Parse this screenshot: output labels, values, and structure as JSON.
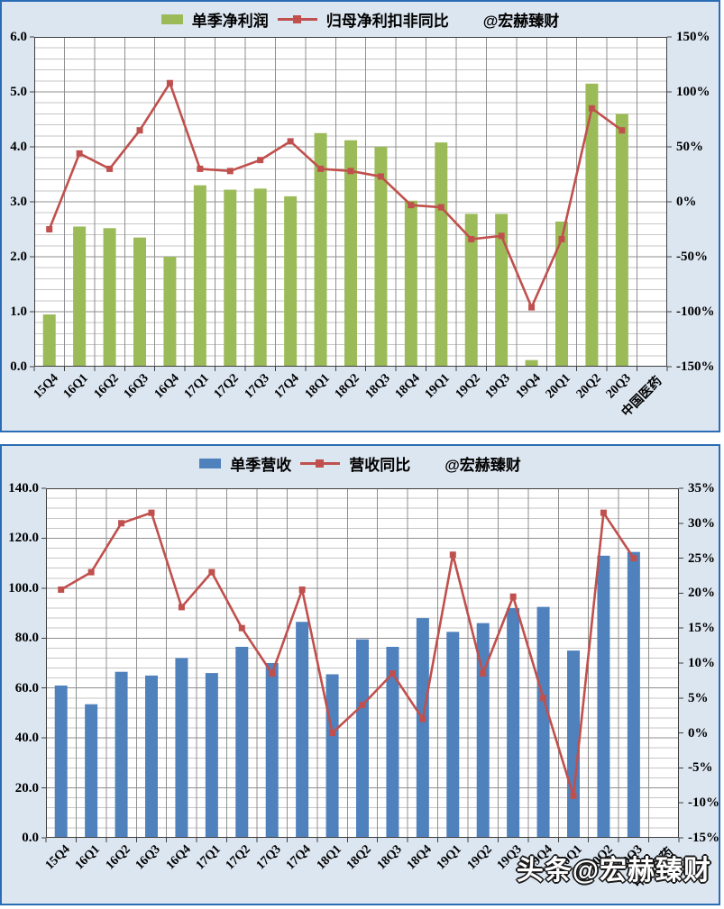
{
  "colors": {
    "panel_background": "#dce6f1",
    "panel_border": "#2a6db4",
    "plot_background": "#ffffff",
    "grid_minor": "#c6c6c6",
    "grid_major": "#8f8f8f",
    "axis_line": "#404040",
    "bar_green": "#9bbb59",
    "bar_blue": "#4f81bd",
    "line_red": "#c0504d",
    "text": "#000000"
  },
  "footer": {
    "watermark": "头条@宏赫臻财"
  },
  "chart_data": [
    {
      "id": "quarterly-net-profit",
      "type": "combo",
      "legend_position": "top",
      "grid": true,
      "legend": {
        "bar_label": "单季净利润",
        "line_label": "归母净利扣非同比",
        "watermark": "@宏赫臻财"
      },
      "categories": [
        "15Q4",
        "16Q1",
        "16Q2",
        "16Q3",
        "16Q4",
        "17Q1",
        "17Q2",
        "17Q3",
        "17Q4",
        "18Q1",
        "18Q2",
        "18Q3",
        "18Q4",
        "19Q1",
        "19Q2",
        "19Q3",
        "19Q4",
        "20Q1",
        "20Q2",
        "20Q3",
        "中国医药"
      ],
      "series": [
        {
          "name": "单季净利润",
          "type": "bar",
          "axis": "left",
          "color": "#9bbb59",
          "values": [
            0.95,
            2.55,
            2.52,
            2.35,
            2.0,
            3.3,
            3.22,
            3.24,
            3.1,
            4.25,
            4.12,
            4.0,
            3.02,
            4.08,
            2.78,
            2.78,
            0.12,
            2.64,
            5.15,
            4.6,
            null
          ]
        },
        {
          "name": "归母净利扣非同比",
          "type": "line",
          "axis": "right",
          "color": "#c0504d",
          "values": [
            -25,
            44,
            30,
            65,
            108,
            30,
            28,
            38,
            55,
            30,
            28,
            23,
            -3,
            -5,
            -34,
            -31,
            -96,
            -34,
            85,
            65,
            null
          ]
        }
      ],
      "left_axis": {
        "min": 0,
        "max": 6,
        "major": 1,
        "minor": 0.2,
        "labels": [
          "0.0",
          "1.0",
          "2.0",
          "3.0",
          "4.0",
          "5.0",
          "6.0"
        ]
      },
      "right_axis": {
        "min": -150,
        "max": 150,
        "major": 50,
        "unit": "%",
        "labels": [
          "-150%",
          "-100%",
          "-50%",
          "0%",
          "50%",
          "100%",
          "150%"
        ]
      }
    },
    {
      "id": "quarterly-revenue",
      "type": "combo",
      "legend_position": "top",
      "grid": true,
      "legend": {
        "bar_label": "单季营收",
        "line_label": "营收同比",
        "watermark": "@宏赫臻财"
      },
      "categories": [
        "15Q4",
        "16Q1",
        "16Q2",
        "16Q3",
        "16Q4",
        "17Q1",
        "17Q2",
        "17Q3",
        "17Q4",
        "18Q1",
        "18Q2",
        "18Q3",
        "18Q4",
        "19Q1",
        "19Q2",
        "19Q3",
        "19Q4",
        "20Q1",
        "20Q2",
        "20Q3",
        "中国医药"
      ],
      "series": [
        {
          "name": "单季营收",
          "type": "bar",
          "axis": "left",
          "color": "#4f81bd",
          "values": [
            61,
            53.5,
            66.5,
            65,
            72,
            66,
            76.5,
            70,
            86.5,
            65.5,
            79.5,
            76.5,
            88,
            82.5,
            86,
            92,
            92.5,
            75,
            113,
            114.5,
            null
          ]
        },
        {
          "name": "营收同比",
          "type": "line",
          "axis": "right",
          "color": "#c0504d",
          "values": [
            20.5,
            23,
            30,
            31.5,
            18,
            23,
            15,
            8.5,
            20.5,
            0,
            4,
            8.5,
            2,
            25.5,
            8.5,
            19.5,
            5,
            -9,
            31.5,
            25,
            null
          ]
        }
      ],
      "left_axis": {
        "min": 0,
        "max": 140,
        "major": 20,
        "minor": 4,
        "labels": [
          "0.0",
          "20.0",
          "40.0",
          "60.0",
          "80.0",
          "100.0",
          "120.0",
          "140.0"
        ]
      },
      "right_axis": {
        "min": -15,
        "max": 35,
        "major": 5,
        "unit": "%",
        "labels": [
          "-15%",
          "-10%",
          "-5%",
          "0%",
          "5%",
          "10%",
          "15%",
          "20%",
          "25%",
          "30%",
          "35%"
        ]
      }
    }
  ]
}
